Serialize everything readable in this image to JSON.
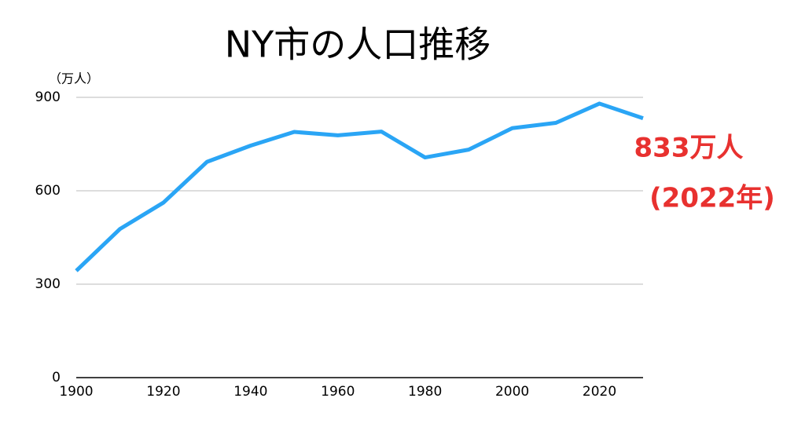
{
  "chart_data": {
    "type": "line",
    "title": "NY市の人口推移",
    "y_label": "（万人）",
    "categories": [
      "1900",
      null,
      "1920",
      null,
      "1940",
      null,
      "1960",
      null,
      "1980",
      null,
      "2000",
      null,
      "2020",
      null
    ],
    "series": [
      {
        "name": "NY市の人口",
        "color": "#2aa5f5",
        "values": [
          343,
          477,
          562,
          693,
          745,
          789,
          778,
          790,
          707,
          732,
          801,
          818,
          880,
          833
        ]
      }
    ],
    "ylim": [
      0,
      900
    ],
    "yticks": [
      0,
      300,
      600,
      900
    ],
    "grid": true,
    "annotations": [
      "833万人",
      "(2022年)"
    ]
  }
}
